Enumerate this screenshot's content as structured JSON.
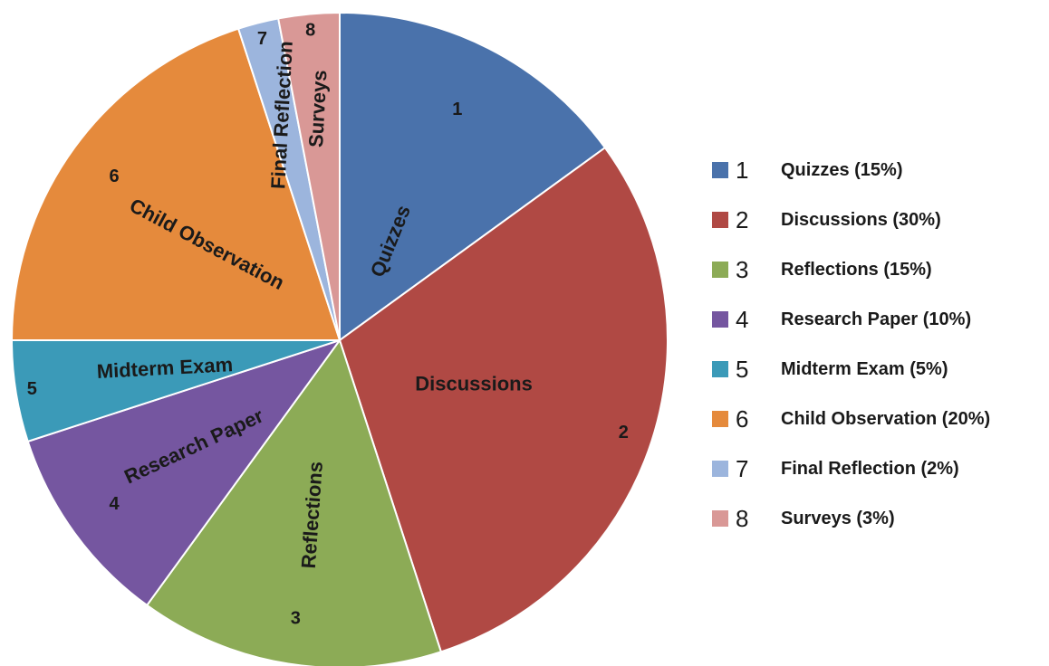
{
  "chart_data": {
    "type": "pie",
    "slices": [
      {
        "number": "1",
        "name": "Quizzes",
        "value": 15,
        "legend": "Quizzes (15%)",
        "color": "#4a72ab"
      },
      {
        "number": "2",
        "name": "Discussions",
        "value": 30,
        "legend": "Discussions (30%)",
        "color": "#b04944"
      },
      {
        "number": "3",
        "name": "Reflections",
        "value": 15,
        "legend": "Reflections  (15%)",
        "color": "#8cab56"
      },
      {
        "number": "4",
        "name": "Research Paper",
        "value": 10,
        "legend": "Research Paper  (10%)",
        "color": "#7556a0"
      },
      {
        "number": "5",
        "name": "Midterm Exam",
        "value": 5,
        "legend": "Midterm Exam  (5%)",
        "color": "#3b9ab8"
      },
      {
        "number": "6",
        "name": "Child Observation",
        "value": 20,
        "legend": "Child Observation (20%)",
        "color": "#e58a3c"
      },
      {
        "number": "7",
        "name": "Final Reflection",
        "value": 2,
        "legend": "Final Reflection (2%)",
        "color": "#9cb5dd"
      },
      {
        "number": "8",
        "name": "Surveys",
        "value": 3,
        "legend": "Surveys  (3%)",
        "color": "#d99896"
      }
    ],
    "start": "12 o'clock",
    "direction": "clockwise",
    "legend_position": "right"
  }
}
